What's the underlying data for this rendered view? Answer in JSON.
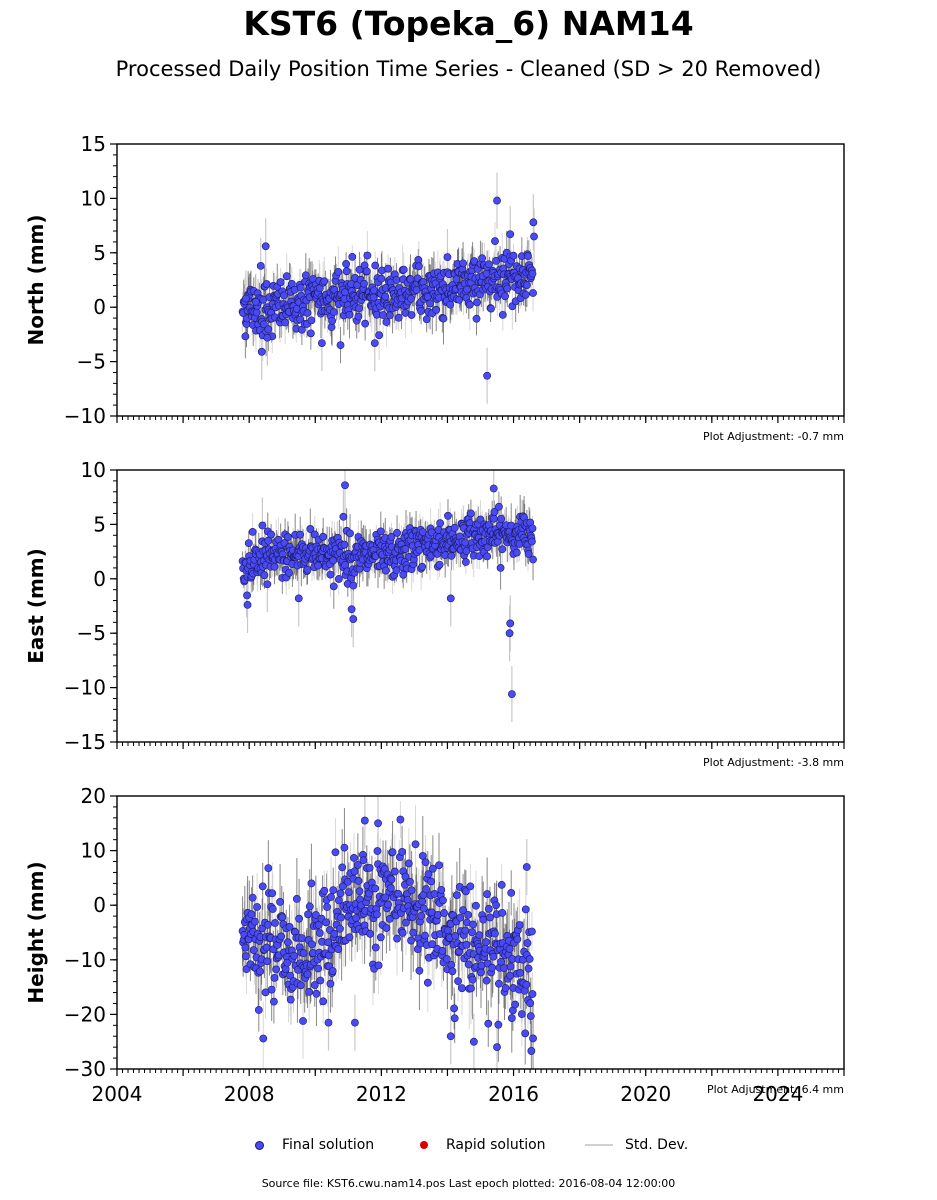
{
  "title": "KST6 (Topeka_6) NAM14",
  "subtitle": "Processed Daily Position Time Series - Cleaned (SD > 20 Removed)",
  "legend": {
    "final": "Final solution",
    "rapid": "Rapid solution",
    "std": "Std. Dev."
  },
  "source": "Source file: KST6.cwu.nam14.pos  Last epoch plotted: 2016-08-04 12:00:00",
  "colors": {
    "final": "#4a4af5",
    "final_edge": "#1a1a66",
    "rapid": "#dd0000",
    "std": "#c8c8c8"
  },
  "chart_data": [
    {
      "type": "scatter",
      "ylabel": "North (mm)",
      "ylim": [
        -10,
        15
      ],
      "yticks": [
        -10,
        -5,
        0,
        5,
        10,
        15
      ],
      "xlim": [
        2004,
        2026
      ],
      "adjustment": "Plot Adjustment: -0.7 mm",
      "data_start": 2007.8,
      "data_end": 2016.59,
      "trend": [
        [
          2007.8,
          0.0
        ],
        [
          2009.0,
          0.0
        ],
        [
          2010.5,
          1.0
        ],
        [
          2012.0,
          1.2
        ],
        [
          2013.5,
          1.5
        ],
        [
          2014.5,
          2.0
        ],
        [
          2015.5,
          3.0
        ],
        [
          2016.59,
          3.0
        ]
      ],
      "scatter": 1.3,
      "std": 1.6,
      "outliers": [
        [
          2007.9,
          0.8
        ],
        [
          2008.2,
          0.5
        ],
        [
          2008.35,
          3.8
        ],
        [
          2008.38,
          -4.1
        ],
        [
          2008.5,
          5.6
        ],
        [
          2008.55,
          -2.8
        ],
        [
          2010.2,
          -3.3
        ],
        [
          2011.8,
          -3.3
        ],
        [
          2014.0,
          4.6
        ],
        [
          2015.2,
          -6.3
        ],
        [
          2015.5,
          9.8
        ],
        [
          2015.9,
          6.7
        ],
        [
          2016.6,
          7.8
        ],
        [
          2016.62,
          6.5
        ]
      ]
    },
    {
      "type": "scatter",
      "ylabel": "East (mm)",
      "ylim": [
        -15,
        10
      ],
      "yticks": [
        -15,
        -10,
        -5,
        0,
        5,
        10
      ],
      "xlim": [
        2004,
        2026
      ],
      "adjustment": "Plot Adjustment: -3.8 mm",
      "data_start": 2007.8,
      "data_end": 2016.59,
      "trend": [
        [
          2007.8,
          0.5
        ],
        [
          2008.5,
          2.0
        ],
        [
          2010.0,
          2.5
        ],
        [
          2011.0,
          2.0
        ],
        [
          2012.5,
          2.0
        ],
        [
          2013.0,
          3.0
        ],
        [
          2014.0,
          3.5
        ],
        [
          2015.0,
          4.0
        ],
        [
          2016.59,
          4.0
        ]
      ],
      "scatter": 1.0,
      "std": 1.4,
      "outliers": [
        [
          2007.95,
          -2.4
        ],
        [
          2008.4,
          4.9
        ],
        [
          2008.55,
          -0.5
        ],
        [
          2009.5,
          -1.8
        ],
        [
          2010.9,
          8.6
        ],
        [
          2010.85,
          5.7
        ],
        [
          2011.1,
          -2.8
        ],
        [
          2011.15,
          -3.7
        ],
        [
          2014.1,
          -1.8
        ],
        [
          2015.4,
          8.3
        ],
        [
          2015.9,
          -4.1
        ],
        [
          2015.88,
          -5.0
        ],
        [
          2015.95,
          -10.6
        ]
      ]
    },
    {
      "type": "scatter",
      "ylabel": "Height (mm)",
      "ylim": [
        -30,
        20
      ],
      "yticks": [
        -30,
        -20,
        -10,
        0,
        10,
        20
      ],
      "xlim": [
        2004,
        2026
      ],
      "xticks": [
        2004,
        2008,
        2012,
        2016,
        2020,
        2024
      ],
      "adjustment": "Plot Adjustment: 6.4 mm",
      "data_start": 2007.8,
      "data_end": 2016.59,
      "trend": [
        [
          2007.8,
          -3.0
        ],
        [
          2009.0,
          -8.0
        ],
        [
          2010.0,
          -10.0
        ],
        [
          2011.0,
          0.0
        ],
        [
          2012.0,
          2.0
        ],
        [
          2013.0,
          0.0
        ],
        [
          2014.0,
          -5.0
        ],
        [
          2015.0,
          -8.0
        ],
        [
          2016.0,
          -12.0
        ],
        [
          2016.59,
          -15.0
        ]
      ],
      "scatter": 5.0,
      "std": 5.0,
      "outliers": [
        [
          2011.5,
          15.5
        ],
        [
          2011.9,
          15.0
        ],
        [
          2014.1,
          -24.0
        ],
        [
          2014.8,
          -25.0
        ],
        [
          2015.5,
          -26.0
        ],
        [
          2016.4,
          7.0
        ],
        [
          2010.4,
          -21.5
        ],
        [
          2011.2,
          -21.5
        ]
      ]
    }
  ]
}
